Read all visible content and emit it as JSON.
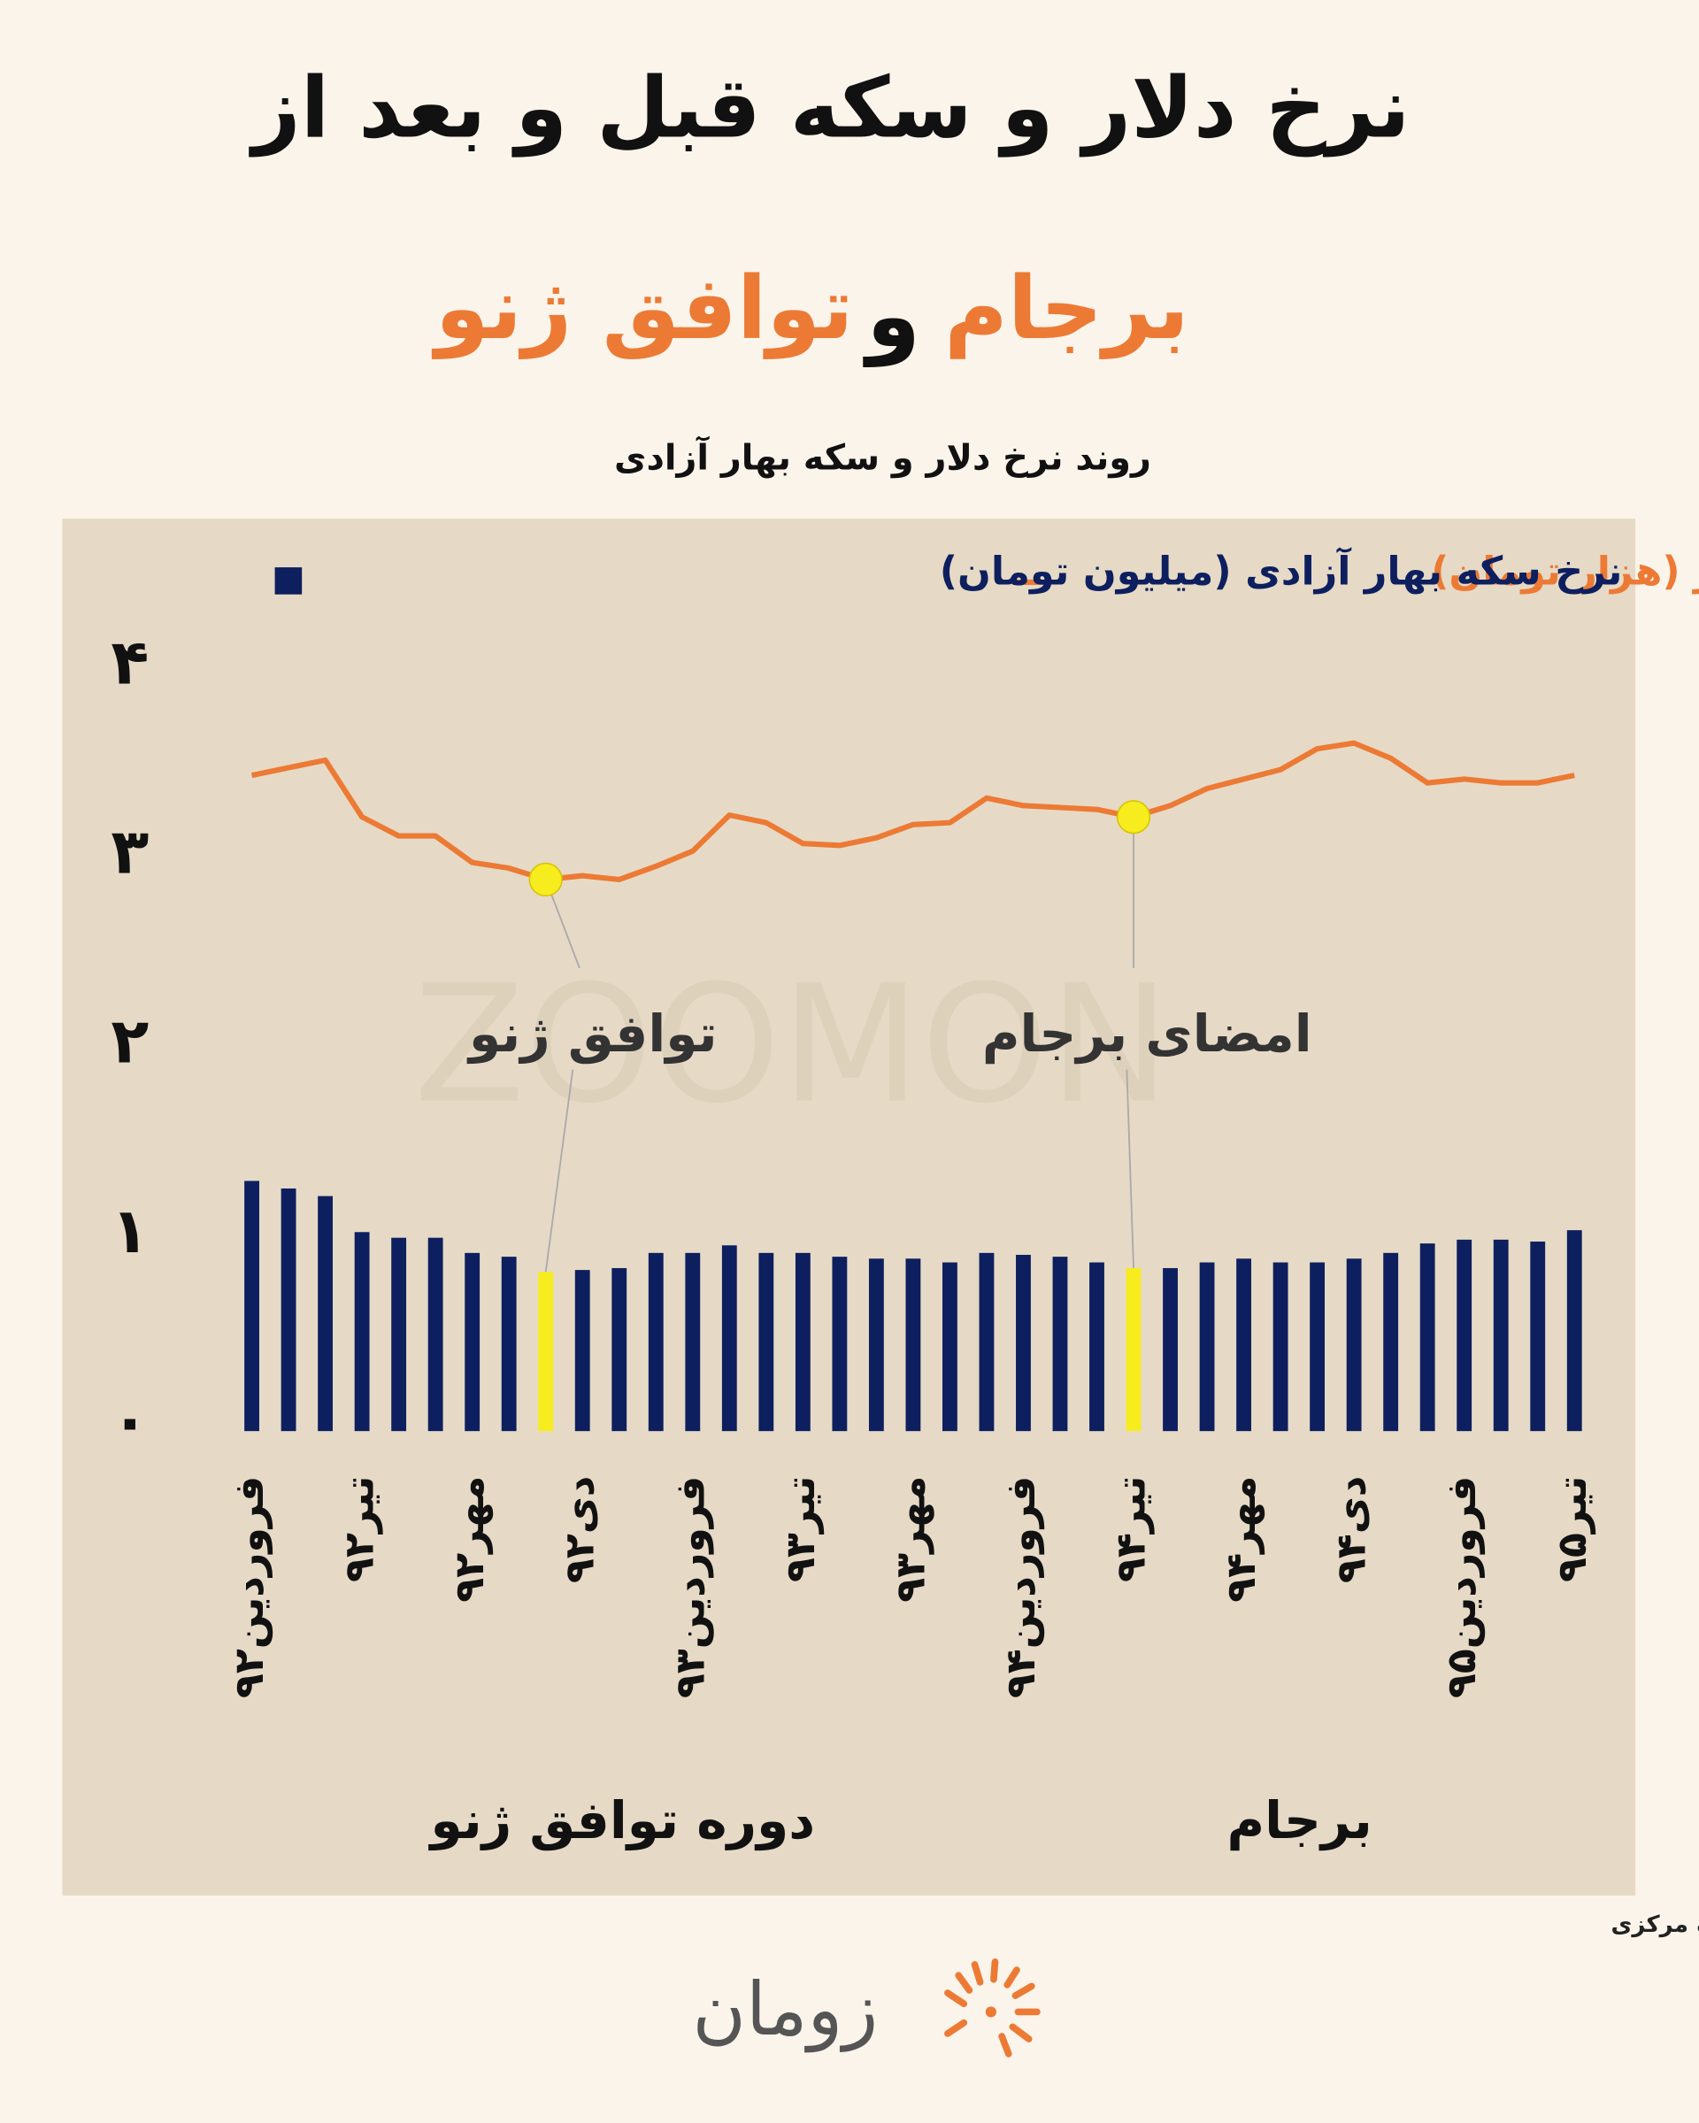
{
  "header": {
    "title": "نرخ دلار و سکه قبل و بعد از",
    "title_parts": [
      "برجام",
      "و",
      "توافق ژنو"
    ]
  },
  "chart_data": {
    "type": "bar-line",
    "title": "روند نرخ دلار و سکه بهار آزادی",
    "categories": [
      "فروردین۹۲",
      null,
      null,
      "تیر۹۲",
      null,
      null,
      "مهر۹۲",
      null,
      null,
      "دی۹۲",
      null,
      null,
      "فروردین۹۳",
      null,
      null,
      "تیر۹۳",
      null,
      null,
      "مهر۹۳",
      null,
      null,
      "فروردین۹۴",
      null,
      null,
      "تیر۹۴",
      null,
      null,
      "مهر۹۴",
      null,
      null,
      "دی۹۴",
      null,
      null,
      "فروردین۹۵",
      null,
      null,
      "تیر۹۵"
    ],
    "series": [
      {
        "name": "نرخ سکه بهار آزادی (میلیون تومان)",
        "type": "bar",
        "color": "#0d1f5e",
        "colors": [
          "#0d1f5e",
          "#0d1f5e",
          "#0d1f5e",
          "#0d1f5e",
          "#0d1f5e",
          "#0d1f5e",
          "#0d1f5e",
          "#0d1f5e",
          "#f7ec1e",
          "#0d1f5e",
          "#0d1f5e",
          "#0d1f5e",
          "#0d1f5e",
          "#0d1f5e",
          "#0d1f5e",
          "#0d1f5e",
          "#0d1f5e",
          "#0d1f5e",
          "#0d1f5e",
          "#0d1f5e",
          "#0d1f5e",
          "#0d1f5e",
          "#0d1f5e",
          "#0d1f5e",
          "#f7ec1e",
          "#0d1f5e",
          "#0d1f5e",
          "#0d1f5e",
          "#0d1f5e",
          "#0d1f5e",
          "#0d1f5e",
          "#0d1f5e",
          "#0d1f5e",
          "#0d1f5e",
          "#0d1f5e",
          "#0d1f5e",
          "#0d1f5e"
        ],
        "values": [
          1.32,
          1.28,
          1.24,
          1.05,
          1.02,
          1.02,
          0.94,
          0.92,
          0.84,
          0.85,
          0.86,
          0.94,
          0.94,
          0.98,
          0.94,
          0.94,
          0.92,
          0.91,
          0.91,
          0.89,
          0.94,
          0.93,
          0.92,
          0.89,
          0.86,
          0.86,
          0.89,
          0.91,
          0.89,
          0.89,
          0.91,
          0.94,
          0.99,
          1.01,
          1.01,
          1.0,
          1.06
        ]
      },
      {
        "name": "نرخ دلار (هزار تومان)",
        "type": "line",
        "color": "#ec7a35",
        "values": [
          3.46,
          3.5,
          3.54,
          3.24,
          3.14,
          3.14,
          3.0,
          2.97,
          2.91,
          2.93,
          2.91,
          2.98,
          3.06,
          3.25,
          3.21,
          3.1,
          3.09,
          3.13,
          3.2,
          3.21,
          3.34,
          3.3,
          3.29,
          3.28,
          3.24,
          3.3,
          3.39,
          3.44,
          3.49,
          3.6,
          3.63,
          3.55,
          3.42,
          3.44,
          3.42,
          3.42,
          3.46
        ]
      }
    ],
    "highlight_color": "#f7ec1e",
    "annotations": [
      "توافق ژنو",
      "امضای برجام"
    ],
    "periods": [
      "دوره توافق ژنو",
      "برجام"
    ],
    "ylim": [
      0,
      4
    ],
    "yticks": [
      {
        "value": 0,
        "label": "۰"
      },
      {
        "value": 1,
        "label": "۱"
      },
      {
        "value": 2,
        "label": "۲"
      },
      {
        "value": 3,
        "label": "۳"
      },
      {
        "value": 4,
        "label": "۴"
      }
    ],
    "grid": false,
    "watermark": "ZOOMON"
  },
  "footer": {
    "source": "منبع داده: بانک مرکزی",
    "brand": "زومان"
  }
}
